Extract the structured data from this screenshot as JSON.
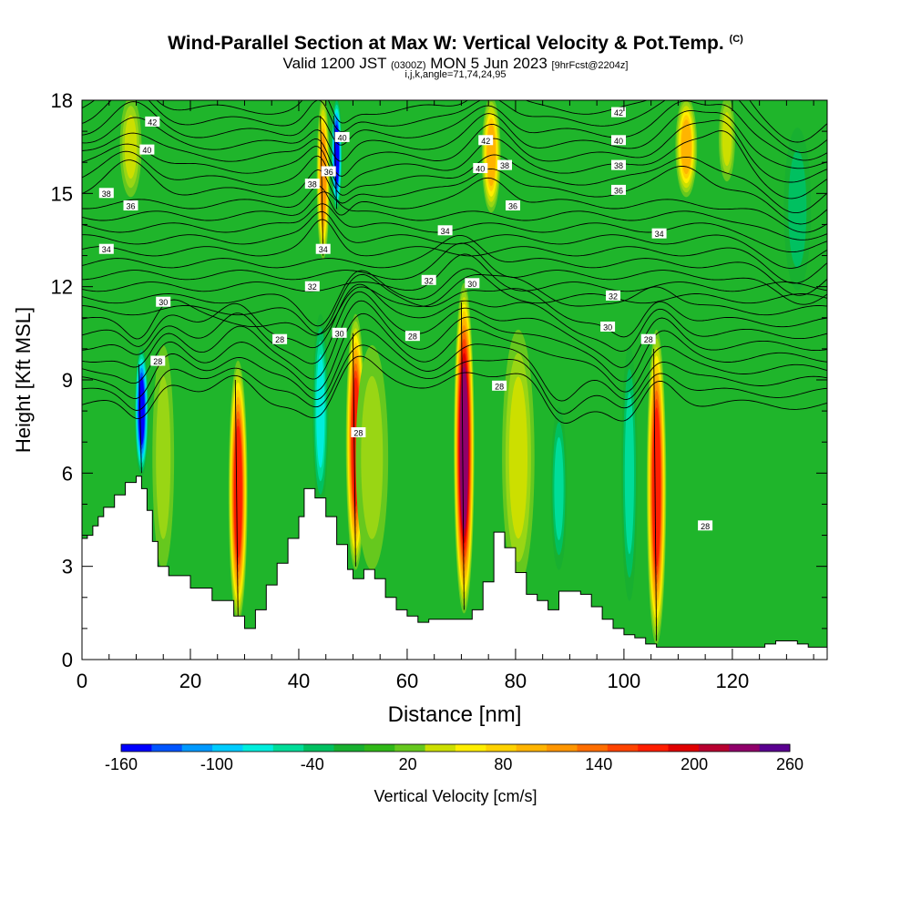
{
  "chart_data": {
    "type": "heatmap",
    "title": "Wind-Parallel Section at Max W: Vertical Velocity & Pot.Temp.",
    "title_mark": "(C)",
    "subtitle": {
      "prefix": "Valid 1200 JST",
      "utc": "(0300Z)",
      "date": "MON 5 Jun 2023",
      "run": "[9hrFcst@2204z]"
    },
    "indices": "i,j,k,angle=71,74,24,95",
    "xlabel": "Distance [nm]",
    "ylabel": "Height [Kft MSL]",
    "xlim": [
      0,
      137.5
    ],
    "ylim": [
      0,
      18
    ],
    "x_ticks": [
      0,
      20,
      40,
      60,
      80,
      100,
      120
    ],
    "y_ticks": [
      0,
      3,
      6,
      9,
      12,
      15,
      18
    ],
    "colorbar": {
      "label": "Vertical Velocity [cm/s]",
      "min": -160,
      "max": 260,
      "step": 20,
      "tick_labels": [
        -160,
        -100,
        -40,
        20,
        80,
        140,
        200,
        260
      ],
      "colors": [
        "#0000ff",
        "#0055ff",
        "#0099ff",
        "#00ccff",
        "#00eedd",
        "#00dd99",
        "#00c060",
        "#18b030",
        "#30b818",
        "#66c81e",
        "#99d614",
        "#ccdf00",
        "#ffee00",
        "#ffd200",
        "#ffb400",
        "#ff9600",
        "#ff6e00",
        "#ff4400",
        "#ff1e00",
        "#e00000",
        "#b80030",
        "#90006a",
        "#5a0090"
      ]
    },
    "terrain": {
      "x": [
        0,
        1,
        2,
        3,
        4,
        6,
        8,
        10,
        11,
        12,
        13,
        14,
        16,
        20,
        24,
        28,
        30,
        32,
        34,
        36,
        38,
        40,
        41,
        43,
        45,
        47,
        49,
        50,
        52,
        54,
        56,
        58,
        60,
        62,
        64,
        66,
        70,
        72,
        74,
        76,
        78,
        80,
        82,
        84,
        86,
        88,
        90,
        92,
        94,
        96,
        98,
        100,
        102,
        104,
        106,
        108,
        110,
        112,
        114,
        116,
        118,
        120,
        122,
        124,
        126,
        128,
        130,
        132,
        134,
        137.5
      ],
      "y": [
        3.9,
        4.0,
        4.3,
        4.6,
        4.9,
        5.3,
        5.7,
        5.9,
        5.5,
        4.8,
        3.8,
        3.0,
        2.7,
        2.3,
        1.9,
        1.4,
        1.0,
        1.6,
        2.4,
        3.1,
        3.9,
        4.6,
        5.5,
        5.2,
        4.6,
        3.7,
        2.9,
        2.6,
        2.9,
        2.6,
        2.0,
        1.6,
        1.4,
        1.2,
        1.3,
        1.3,
        1.3,
        1.6,
        2.5,
        4.1,
        3.6,
        2.8,
        2.1,
        1.9,
        1.6,
        2.2,
        2.2,
        2.1,
        1.7,
        1.3,
        1.0,
        0.8,
        0.7,
        0.5,
        0.4,
        0.4,
        0.4,
        0.4,
        0.4,
        0.4,
        0.4,
        0.4,
        0.4,
        0.4,
        0.5,
        0.6,
        0.6,
        0.5,
        0.4,
        0.4
      ]
    },
    "updrafts": [
      {
        "x": 28.8,
        "bottom": 1.3,
        "top": 9.5,
        "width": 3.5,
        "peak": 200
      },
      {
        "x": 50.5,
        "bottom": 3.0,
        "top": 11.0,
        "width": 3.6,
        "peak": 200
      },
      {
        "x": 70.5,
        "bottom": 1.6,
        "top": 12.0,
        "width": 3.8,
        "peak": 260
      },
      {
        "x": 106.0,
        "bottom": 0.6,
        "top": 10.5,
        "width": 3.6,
        "peak": 200
      },
      {
        "x": 80.5,
        "bottom": 2.5,
        "top": 10.5,
        "width": 6.0,
        "peak": 60
      },
      {
        "x": 15.0,
        "bottom": 3.0,
        "top": 10.0,
        "width": 4.0,
        "peak": 40
      },
      {
        "x": 53.5,
        "bottom": 3.0,
        "top": 10.0,
        "width": 6.0,
        "peak": 40
      },
      {
        "x": 44.5,
        "bottom": 13.0,
        "top": 18.0,
        "width": 2.4,
        "peak": 140
      },
      {
        "x": 75.5,
        "bottom": 14.5,
        "top": 18.0,
        "width": 3.5,
        "peak": 120
      },
      {
        "x": 111.5,
        "bottom": 15.0,
        "top": 18.0,
        "width": 4.0,
        "peak": 110
      },
      {
        "x": 9.0,
        "bottom": 15.0,
        "top": 18.0,
        "width": 4.0,
        "peak": 60
      },
      {
        "x": 119.0,
        "bottom": 15.5,
        "top": 18.0,
        "width": 3.0,
        "peak": 60
      }
    ],
    "downdrafts": [
      {
        "x": 11.0,
        "bottom": 6.0,
        "top": 10.0,
        "width": 2.6,
        "peak": -160
      },
      {
        "x": 47.0,
        "bottom": 14.5,
        "top": 18.0,
        "width": 2.0,
        "peak": -160
      },
      {
        "x": 44.0,
        "bottom": 5.0,
        "top": 11.0,
        "width": 3.0,
        "peak": -80
      },
      {
        "x": 88.0,
        "bottom": 3.0,
        "top": 8.0,
        "width": 3.0,
        "peak": -60
      },
      {
        "x": 101.0,
        "bottom": 2.0,
        "top": 10.0,
        "width": 3.0,
        "peak": -60
      },
      {
        "x": 132.0,
        "bottom": 12.0,
        "top": 17.0,
        "width": 5.0,
        "peak": -40
      }
    ],
    "theta_contours": {
      "levels": [
        28,
        30,
        32,
        34,
        36,
        38,
        40,
        42
      ],
      "labels": [
        {
          "text": "42",
          "x": 13.0,
          "y": 17.3
        },
        {
          "text": "40",
          "x": 12.0,
          "y": 16.4
        },
        {
          "text": "38",
          "x": 4.5,
          "y": 15.0
        },
        {
          "text": "36",
          "x": 9.0,
          "y": 14.6
        },
        {
          "text": "34",
          "x": 4.5,
          "y": 13.2
        },
        {
          "text": "30",
          "x": 15.0,
          "y": 11.5
        },
        {
          "text": "28",
          "x": 14.0,
          "y": 9.6
        },
        {
          "text": "28",
          "x": 36.5,
          "y": 10.3
        },
        {
          "text": "38",
          "x": 42.5,
          "y": 15.3
        },
        {
          "text": "36",
          "x": 45.5,
          "y": 15.7
        },
        {
          "text": "40",
          "x": 48.0,
          "y": 16.8
        },
        {
          "text": "34",
          "x": 44.5,
          "y": 13.2
        },
        {
          "text": "32",
          "x": 42.5,
          "y": 12.0
        },
        {
          "text": "30",
          "x": 47.5,
          "y": 10.5
        },
        {
          "text": "28",
          "x": 51.0,
          "y": 7.3
        },
        {
          "text": "28",
          "x": 61.0,
          "y": 10.4
        },
        {
          "text": "32",
          "x": 64.0,
          "y": 12.2
        },
        {
          "text": "34",
          "x": 67.0,
          "y": 13.8
        },
        {
          "text": "30",
          "x": 72.0,
          "y": 12.1
        },
        {
          "text": "42",
          "x": 74.5,
          "y": 16.7
        },
        {
          "text": "40",
          "x": 73.5,
          "y": 15.8
        },
        {
          "text": "38",
          "x": 78.0,
          "y": 15.9
        },
        {
          "text": "36",
          "x": 79.5,
          "y": 14.6
        },
        {
          "text": "28",
          "x": 77.0,
          "y": 8.8
        },
        {
          "text": "42",
          "x": 99.0,
          "y": 17.6
        },
        {
          "text": "40",
          "x": 99.0,
          "y": 16.7
        },
        {
          "text": "38",
          "x": 99.0,
          "y": 15.9
        },
        {
          "text": "36",
          "x": 99.0,
          "y": 15.1
        },
        {
          "text": "34",
          "x": 106.5,
          "y": 13.7
        },
        {
          "text": "32",
          "x": 98.0,
          "y": 11.7
        },
        {
          "text": "30",
          "x": 97.0,
          "y": 10.7
        },
        {
          "text": "28",
          "x": 104.5,
          "y": 10.3
        },
        {
          "text": "28",
          "x": 115.0,
          "y": 4.3
        }
      ]
    }
  }
}
